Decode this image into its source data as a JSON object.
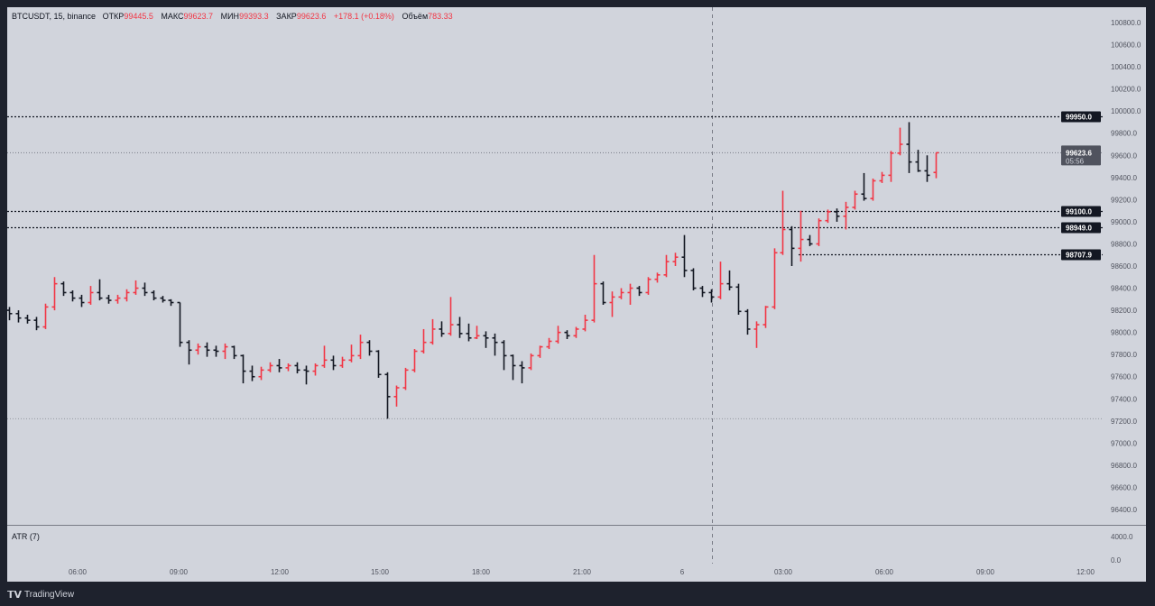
{
  "header": {
    "symbol": "BTCUSDT, 15, binance",
    "open_label": "ОТКР",
    "open": "99445.5",
    "high_label": "МАКС",
    "high": "99623.7",
    "low_label": "МИН",
    "low": "99393.3",
    "close_label": "ЗАКР",
    "close": "99623.6",
    "change": "+178.1 (+0.18%)",
    "volume_label": "Объём",
    "volume": "783.33"
  },
  "indicator": {
    "label": "ATR (7)",
    "axis": [
      "4000.0",
      "0.0"
    ]
  },
  "footer": {
    "brand": "TradingView",
    "logo_glyph": "TV"
  },
  "colors": {
    "up": "#f23645",
    "down": "#131722",
    "background": "#d1d4dc",
    "frame": "#1e222d"
  },
  "chart_data": {
    "type": "ohlc",
    "symbol": "BTCUSDT",
    "interval": "15",
    "exchange": "binance",
    "ylim": [
      96400,
      100800
    ],
    "y_ticks": [
      100800,
      100600,
      100400,
      100200,
      100000,
      99800,
      99600,
      99400,
      99200,
      99000,
      98800,
      98600,
      98400,
      98200,
      98000,
      97800,
      97600,
      97400,
      97200,
      97000,
      96800,
      96600,
      96400
    ],
    "x_ticks": [
      "06:00",
      "09:00",
      "12:00",
      "15:00",
      "18:00",
      "21:00",
      "6",
      "03:00",
      "06:00",
      "09:00",
      "12:00"
    ],
    "price_lines": [
      {
        "price": "99950.0",
        "style": "dotted-bold"
      },
      {
        "price": "99100.0",
        "style": "dotted-bold"
      },
      {
        "price": "98949.0",
        "style": "dotted-bold"
      },
      {
        "price": "98707.9",
        "style": "dotted-bold-partial"
      }
    ],
    "current_price": {
      "price": "99623.6",
      "countdown": "05:56"
    },
    "ohlc": [
      [
        98200,
        98230,
        98110,
        98170
      ],
      [
        98170,
        98200,
        98090,
        98130
      ],
      [
        98130,
        98160,
        98080,
        98110
      ],
      [
        98110,
        98140,
        98020,
        98050
      ],
      [
        98050,
        98260,
        98030,
        98230
      ],
      [
        98230,
        98500,
        98200,
        98440
      ],
      [
        98440,
        98460,
        98330,
        98360
      ],
      [
        98360,
        98380,
        98280,
        98310
      ],
      [
        98310,
        98340,
        98230,
        98270
      ],
      [
        98270,
        98420,
        98250,
        98360
      ],
      [
        98360,
        98480,
        98290,
        98310
      ],
      [
        98310,
        98340,
        98260,
        98290
      ],
      [
        98290,
        98340,
        98260,
        98310
      ],
      [
        98310,
        98390,
        98280,
        98360
      ],
      [
        98360,
        98470,
        98340,
        98400
      ],
      [
        98400,
        98450,
        98330,
        98360
      ],
      [
        98360,
        98380,
        98290,
        98310
      ],
      [
        98310,
        98330,
        98270,
        98290
      ],
      [
        98290,
        98300,
        98240,
        98270
      ],
      [
        98270,
        98270,
        97870,
        97910
      ],
      [
        97910,
        97930,
        97710,
        97840
      ],
      [
        97840,
        97900,
        97800,
        97870
      ],
      [
        97870,
        97910,
        97780,
        97840
      ],
      [
        97840,
        97880,
        97780,
        97830
      ],
      [
        97830,
        97900,
        97760,
        97870
      ],
      [
        97870,
        97880,
        97760,
        97790
      ],
      [
        97790,
        97800,
        97540,
        97650
      ],
      [
        97650,
        97700,
        97560,
        97600
      ],
      [
        97600,
        97690,
        97570,
        97660
      ],
      [
        97660,
        97730,
        97640,
        97700
      ],
      [
        97700,
        97760,
        97640,
        97680
      ],
      [
        97680,
        97720,
        97650,
        97700
      ],
      [
        97700,
        97730,
        97630,
        97660
      ],
      [
        97660,
        97700,
        97530,
        97650
      ],
      [
        97650,
        97720,
        97610,
        97700
      ],
      [
        97700,
        97880,
        97680,
        97750
      ],
      [
        97750,
        97790,
        97660,
        97700
      ],
      [
        97700,
        97780,
        97680,
        97750
      ],
      [
        97750,
        97890,
        97730,
        97790
      ],
      [
        97790,
        97980,
        97760,
        97910
      ],
      [
        97910,
        97930,
        97790,
        97830
      ],
      [
        97830,
        97840,
        97590,
        97620
      ],
      [
        97620,
        97640,
        97220,
        97420
      ],
      [
        97420,
        97520,
        97330,
        97500
      ],
      [
        97500,
        97680,
        97480,
        97660
      ],
      [
        97660,
        97850,
        97640,
        97830
      ],
      [
        97830,
        98030,
        97810,
        97910
      ],
      [
        97910,
        98120,
        97890,
        98030
      ],
      [
        98030,
        98100,
        97960,
        97990
      ],
      [
        97990,
        98320,
        97970,
        98070
      ],
      [
        98070,
        98140,
        97950,
        97990
      ],
      [
        97990,
        98080,
        97920,
        97950
      ],
      [
        97950,
        98060,
        97940,
        97970
      ],
      [
        97970,
        98010,
        97860,
        97950
      ],
      [
        97950,
        97990,
        97790,
        97910
      ],
      [
        97910,
        97930,
        97660,
        97790
      ],
      [
        97790,
        97800,
        97570,
        97700
      ],
      [
        97700,
        97740,
        97540,
        97680
      ],
      [
        97680,
        97810,
        97660,
        97790
      ],
      [
        97790,
        97880,
        97770,
        97870
      ],
      [
        97870,
        97950,
        97850,
        97920
      ],
      [
        97920,
        98060,
        97900,
        98000
      ],
      [
        98000,
        98020,
        97940,
        97970
      ],
      [
        97970,
        98050,
        97950,
        98030
      ],
      [
        98030,
        98160,
        98010,
        98110
      ],
      [
        98110,
        98700,
        98090,
        98440
      ],
      [
        98440,
        98460,
        98250,
        98270
      ],
      [
        98270,
        98370,
        98140,
        98320
      ],
      [
        98320,
        98400,
        98300,
        98360
      ],
      [
        98360,
        98440,
        98250,
        98400
      ],
      [
        98400,
        98420,
        98330,
        98360
      ],
      [
        98360,
        98500,
        98340,
        98480
      ],
      [
        98480,
        98540,
        98450,
        98520
      ],
      [
        98520,
        98700,
        98500,
        98640
      ],
      [
        98640,
        98720,
        98600,
        98680
      ],
      [
        98680,
        98880,
        98500,
        98560
      ],
      [
        98560,
        98580,
        98380,
        98400
      ],
      [
        98400,
        98420,
        98320,
        98360
      ],
      [
        98360,
        98390,
        98270,
        98320
      ],
      [
        98320,
        98640,
        98300,
        98440
      ],
      [
        98440,
        98560,
        98380,
        98410
      ],
      [
        98410,
        98440,
        98160,
        98190
      ],
      [
        98190,
        98210,
        97980,
        98030
      ],
      [
        98030,
        98100,
        97860,
        98070
      ],
      [
        98070,
        98240,
        98040,
        98230
      ],
      [
        98230,
        98760,
        98210,
        98720
      ],
      [
        98720,
        99280,
        98700,
        98930
      ],
      [
        98930,
        98960,
        98600,
        98760
      ],
      [
        98760,
        99100,
        98640,
        98840
      ],
      [
        98840,
        98880,
        98780,
        98800
      ],
      [
        98800,
        99030,
        98780,
        99010
      ],
      [
        99010,
        99110,
        98990,
        99090
      ],
      [
        99090,
        99120,
        99000,
        99050
      ],
      [
        99050,
        99180,
        98930,
        99130
      ],
      [
        99130,
        99280,
        99110,
        99250
      ],
      [
        99250,
        99440,
        99190,
        99210
      ],
      [
        99210,
        99390,
        99190,
        99370
      ],
      [
        99370,
        99450,
        99350,
        99420
      ],
      [
        99420,
        99640,
        99360,
        99620
      ],
      [
        99620,
        99850,
        99600,
        99700
      ],
      [
        99700,
        99900,
        99440,
        99540
      ],
      [
        99540,
        99650,
        99450,
        99460
      ],
      [
        99460,
        99600,
        99360,
        99420
      ],
      [
        99445.5,
        99623.7,
        99393.3,
        99623.6
      ]
    ]
  }
}
